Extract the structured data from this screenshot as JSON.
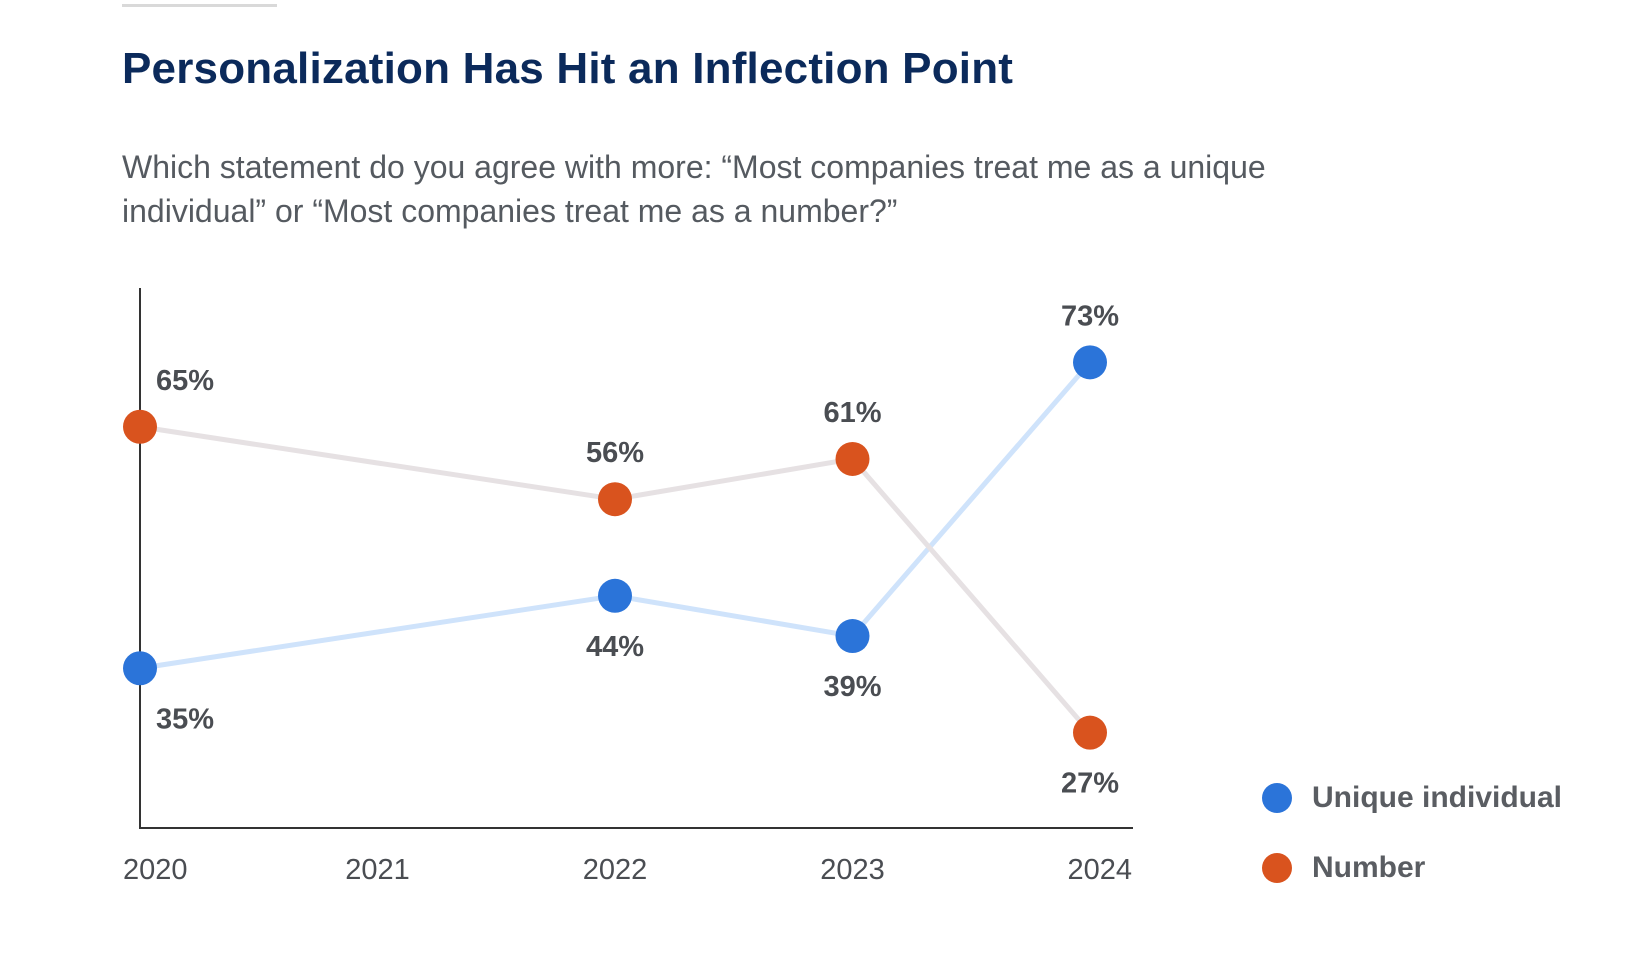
{
  "header": {
    "title": "Personalization Has Hit an Inflection Point",
    "subtitle_line1": "Which statement do you agree with more: “Most companies treat me as a unique",
    "subtitle_line2": "individual” or “Most companies treat me as a number?”"
  },
  "chart_data": {
    "type": "line",
    "title": "Personalization Has Hit an Inflection Point",
    "subtitle": "Which statement do you agree with more: “Most companies treat me as a unique individual” or “Most companies treat me as a number?”",
    "xlabel": "",
    "ylabel": "",
    "x": [
      2020,
      2021,
      2022,
      2023,
      2024
    ],
    "tick_labels": [
      "2020",
      "2021",
      "2022",
      "2023",
      "2024"
    ],
    "ylim": [
      0,
      100
    ],
    "grid": false,
    "legend_placement": "bottom-right",
    "series": [
      {
        "name": "Unique individual",
        "color": "#2b74d9",
        "line_color": "#cfe3fb",
        "points": [
          {
            "x": 2020,
            "y": 35,
            "label": "35%"
          },
          {
            "x": 2022,
            "y": 44,
            "label": "44%"
          },
          {
            "x": 2023,
            "y": 39,
            "label": "39%"
          },
          {
            "x": 2024,
            "y": 73,
            "label": "73%"
          }
        ]
      },
      {
        "name": "Number",
        "color": "#d9531e",
        "line_color": "#e6e1e3",
        "points": [
          {
            "x": 2020,
            "y": 65,
            "label": "65%"
          },
          {
            "x": 2022,
            "y": 56,
            "label": "56%"
          },
          {
            "x": 2023,
            "y": 61,
            "label": "61%"
          },
          {
            "x": 2024,
            "y": 27,
            "label": "27%"
          }
        ]
      }
    ]
  }
}
